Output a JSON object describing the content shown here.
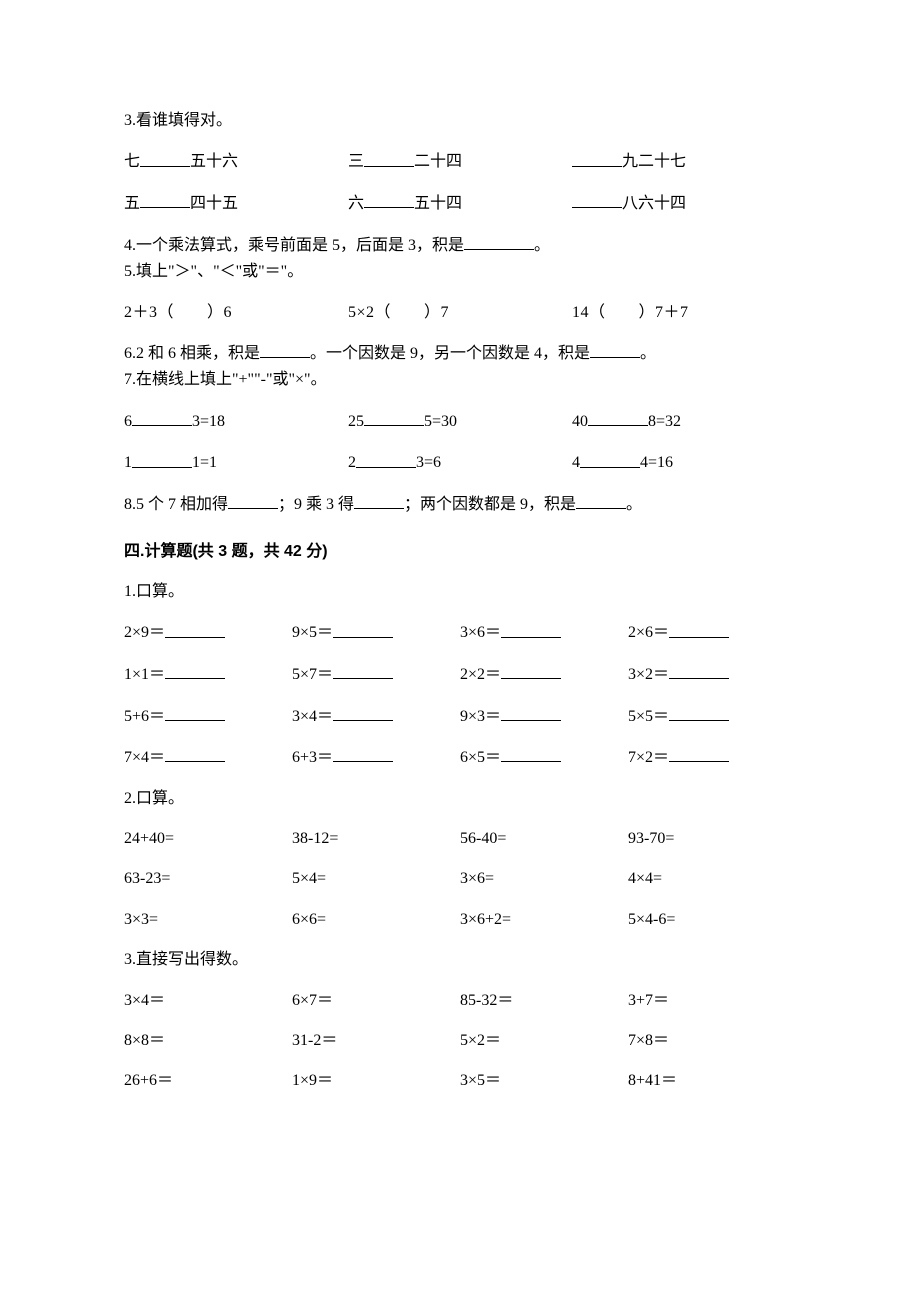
{
  "q3": {
    "title": "3.看谁填得对。",
    "row1": {
      "a_pre": "七",
      "a_post": "五十六",
      "b_pre": "三",
      "b_post": "二十四",
      "c_post": "九二十七"
    },
    "row2": {
      "a_pre": "五",
      "a_post": "四十五",
      "b_pre": "六",
      "b_post": "五十四",
      "c_post": "八六十四"
    }
  },
  "q4": {
    "text_a": "4.一个乘法算式，乘号前面是 5，后面是 3，积是",
    "text_b": "。"
  },
  "q5": {
    "title": "5.填上\"＞\"、\"＜\"或\"＝\"。",
    "items": {
      "a": "2＋3（　　）6",
      "b": "5×2（　　）7",
      "c": "14（　　）7＋7"
    }
  },
  "q6": {
    "a": "6.2 和 6 相乘，积是",
    "b": "。一个因数是 9，另一个因数是 4，积是",
    "c": "。"
  },
  "q7": {
    "title": "7.在横线上填上\"+\"\"-\"或\"×\"。",
    "row1": {
      "a1": "6",
      "a2": "3=18",
      "b1": "25",
      "b2": "5=30",
      "c1": "40",
      "c2": "8=32"
    },
    "row2": {
      "a1": "1",
      "a2": "1=1",
      "b1": "2",
      "b2": "3=6",
      "c1": "4",
      "c2": "4=16"
    }
  },
  "q8": {
    "a": "8.5 个 7 相加得",
    "b": "；9 乘 3 得",
    "c": "；两个因数都是 9，积是",
    "d": "。"
  },
  "section4": {
    "title": "四.计算题(共 3 题，共 42 分)"
  },
  "s4q1": {
    "title": "1.口算。",
    "r1": {
      "a": "2×9＝",
      "b": "9×5＝",
      "c": "3×6＝",
      "d": "2×6＝"
    },
    "r2": {
      "a": "1×1＝",
      "b": "5×7＝",
      "c": "2×2＝",
      "d": "3×2＝"
    },
    "r3": {
      "a": "5+6＝",
      "b": "3×4＝",
      "c": "9×3＝",
      "d": "5×5＝"
    },
    "r4": {
      "a": "7×4＝",
      "b": "6+3＝",
      "c": "6×5＝",
      "d": "7×2＝"
    }
  },
  "s4q2": {
    "title": "2.口算。",
    "r1": {
      "a": "24+40=",
      "b": "38-12=",
      "c": "56-40=",
      "d": "93-70="
    },
    "r2": {
      "a": "63-23=",
      "b": "5×4=",
      "c": "3×6=",
      "d": "4×4="
    },
    "r3": {
      "a": "3×3=",
      "b": "6×6=",
      "c": "3×6+2=",
      "d": "5×4-6="
    }
  },
  "s4q3": {
    "title": "3.直接写出得数。",
    "r1": {
      "a": "3×4＝",
      "b": "6×7＝",
      "c": "85-32＝",
      "d": "3+7＝"
    },
    "r2": {
      "a": "8×8＝",
      "b": "31-2＝",
      "c": "5×2＝",
      "d": "7×8＝"
    },
    "r3": {
      "a": "26+6＝",
      "b": "1×9＝",
      "c": "3×5＝",
      "d": "8+41＝"
    }
  }
}
